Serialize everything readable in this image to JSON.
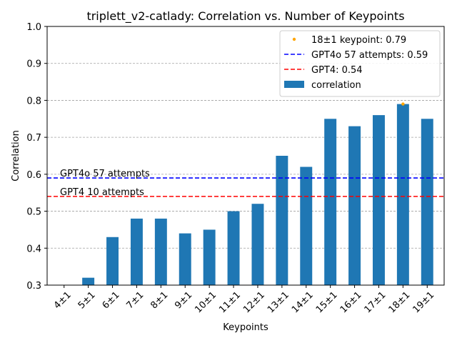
{
  "chart_data": {
    "type": "bar",
    "title": "triplett_v2-catlady: Correlation vs. Number of Keypoints",
    "xlabel": "Keypoints",
    "ylabel": "Correlation",
    "ylim": [
      0.3,
      1.0
    ],
    "yticks": [
      "0.3",
      "0.4",
      "0.5",
      "0.6",
      "0.7",
      "0.8",
      "0.9",
      "1.0"
    ],
    "grid": "horizontal dashed",
    "legend_position": "top-right",
    "categories": [
      "4±1",
      "5±1",
      "6±1",
      "7±1",
      "8±1",
      "9±1",
      "10±1",
      "11±1",
      "12±1",
      "13±1",
      "14±1",
      "15±1",
      "16±1",
      "17±1",
      "18±1",
      "19±1"
    ],
    "series": [
      {
        "name": "correlation",
        "color": "#1f77b4",
        "values": [
          0.28,
          0.32,
          0.43,
          0.48,
          0.48,
          0.44,
          0.45,
          0.5,
          0.52,
          0.65,
          0.62,
          0.75,
          0.73,
          0.76,
          0.79,
          0.75
        ]
      }
    ],
    "highlight": {
      "category": "18±1",
      "value": 0.79,
      "color": "#ffa500"
    },
    "reference_lines": [
      {
        "value": 0.59,
        "color": "#0000ff",
        "label": "GPT4o 57 attempts"
      },
      {
        "value": 0.54,
        "color": "#ff0000",
        "label": "GPT4 10 attempts"
      }
    ],
    "legend": [
      {
        "kind": "marker",
        "color": "#ffa500",
        "label": "18±1 keypoint: 0.79"
      },
      {
        "kind": "dashed",
        "color": "#0000ff",
        "label": "GPT4o 57 attempts: 0.59"
      },
      {
        "kind": "dashed",
        "color": "#ff0000",
        "label": "GPT4: 0.54"
      },
      {
        "kind": "patch",
        "color": "#1f77b4",
        "label": "correlation"
      }
    ]
  }
}
